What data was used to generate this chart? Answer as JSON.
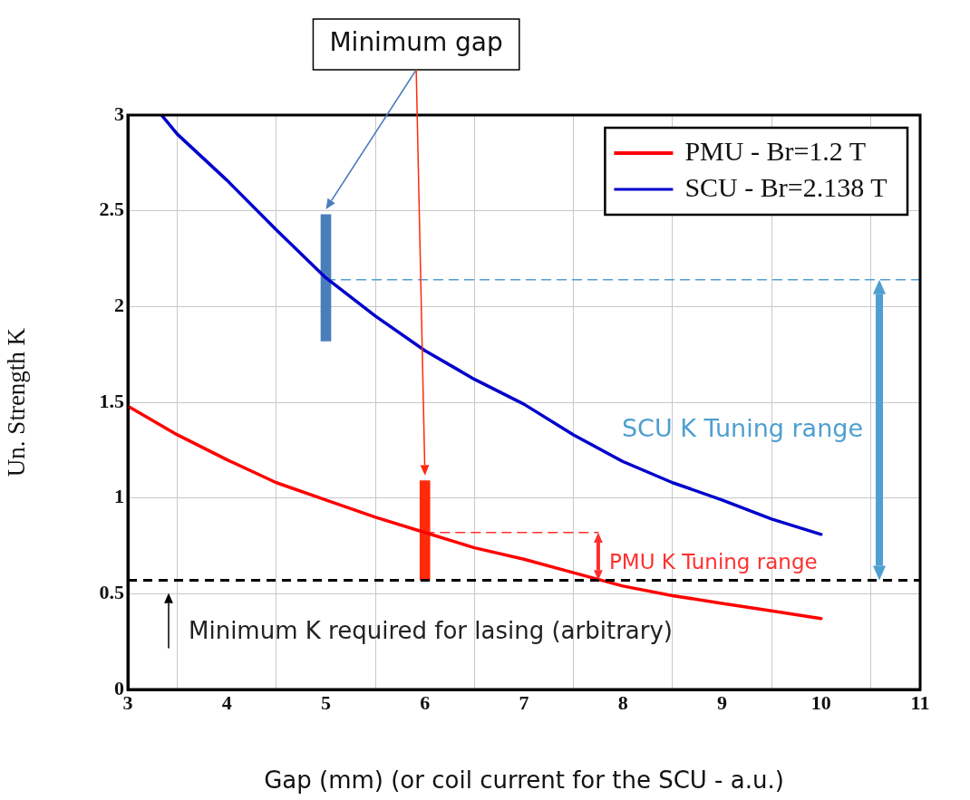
{
  "chart_data": {
    "type": "line",
    "xlabel": "Gap (mm) (or coil current for the SCU - a.u.)",
    "ylabel": "Un. Strength K",
    "xlim": [
      3,
      11
    ],
    "ylim": [
      0,
      3
    ],
    "xticks": [
      3,
      4,
      5,
      6,
      7,
      8,
      9,
      10,
      11
    ],
    "yticks": [
      0,
      0.5,
      1,
      1.5,
      2,
      2.5,
      3
    ],
    "grid": true,
    "legend": "top right",
    "marker": "none",
    "line_style": "solid",
    "series": [
      {
        "name": "PMU - Br=1.2 T",
        "color": "#ff0000",
        "x": [
          3,
          3.5,
          4,
          4.5,
          5,
          5.5,
          6,
          6.5,
          7,
          7.5,
          8,
          8.5,
          9,
          9.5,
          10
        ],
        "values": [
          1.48,
          1.33,
          1.2,
          1.08,
          0.99,
          0.9,
          0.82,
          0.74,
          0.68,
          0.61,
          0.54,
          0.49,
          0.45,
          0.41,
          0.37
        ]
      },
      {
        "name": "SCU - Br=2.138 T",
        "color": "#0000cc",
        "x": [
          3.34,
          3.5,
          4,
          4.5,
          5,
          5.5,
          6,
          6.5,
          7,
          7.5,
          8,
          8.5,
          9,
          9.5,
          10
        ],
        "values": [
          3,
          2.9,
          2.66,
          2.4,
          2.15,
          1.95,
          1.77,
          1.62,
          1.49,
          1.33,
          1.19,
          1.08,
          0.99,
          0.89,
          0.81
        ]
      },
      {
        "type": "line",
        "line_style": "dashed",
        "color": "#4f9fd0",
        "x": [
          5,
          11
        ],
        "values": [
          2.14,
          2.14
        ]
      },
      {
        "type": "line",
        "line_style": "dashed",
        "color": "#ff3030",
        "x": [
          6,
          7.75
        ],
        "values": [
          0.82,
          0.82
        ]
      },
      {
        "type": "bar",
        "color": "#4a7ebb",
        "x": [
          5
        ],
        "base": [
          1.82
        ],
        "values": [
          0.66
        ]
      },
      {
        "type": "bar",
        "color": "#ff2a0a",
        "x": [
          6
        ],
        "base": [
          0.57
        ],
        "values": [
          0.52
        ]
      }
    ],
    "ref_lines": [
      {
        "axis": "y",
        "value": 0.57,
        "color": "#000000",
        "line_style": "dashed",
        "label": "Minimum K required for lasing (arbitrary)"
      }
    ],
    "annotations": [
      "Minimum gap",
      "SCU K Tuning range",
      "PMU K Tuning range"
    ]
  }
}
